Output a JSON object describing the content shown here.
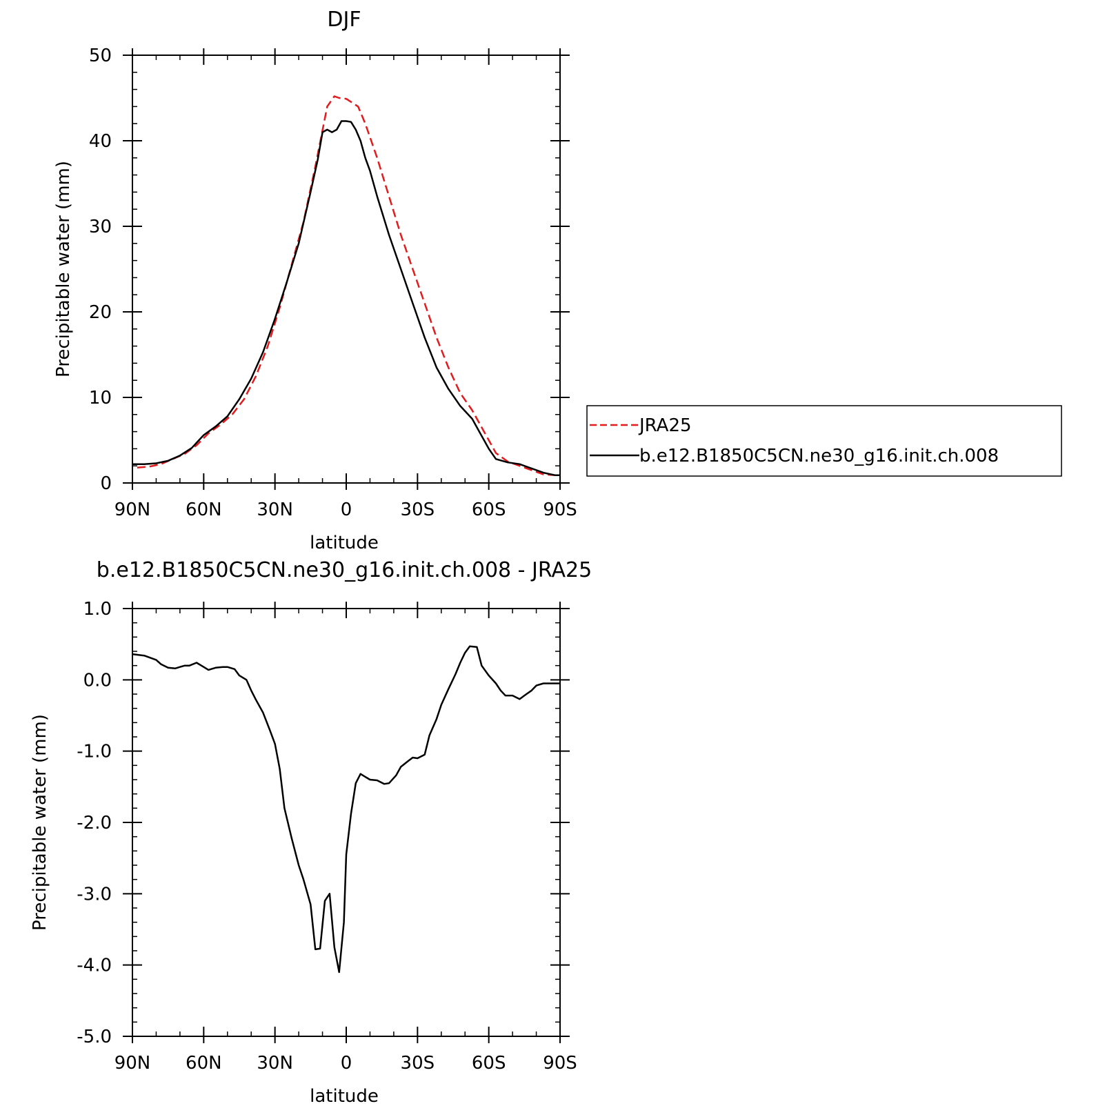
{
  "colors": {
    "jra25": "#e41a1c",
    "model": "#000000"
  },
  "chart_data": [
    {
      "type": "line",
      "title": "DJF",
      "xlabel": "latitude",
      "ylabel": "Precipitable water (mm)",
      "xlim": [
        90,
        -90
      ],
      "ylim": [
        0,
        50
      ],
      "x_ticks": [
        {
          "value": 90,
          "label": "90N"
        },
        {
          "value": 60,
          "label": "60N"
        },
        {
          "value": 30,
          "label": "30N"
        },
        {
          "value": 0,
          "label": "0"
        },
        {
          "value": -30,
          "label": "30S"
        },
        {
          "value": -60,
          "label": "60S"
        },
        {
          "value": -90,
          "label": "90S"
        }
      ],
      "y_ticks": [
        {
          "value": 0,
          "label": "0"
        },
        {
          "value": 10,
          "label": "10"
        },
        {
          "value": 20,
          "label": "20"
        },
        {
          "value": 30,
          "label": "30"
        },
        {
          "value": 40,
          "label": "40"
        },
        {
          "value": 50,
          "label": "50"
        }
      ],
      "legend_position": "outside-right",
      "series": [
        {
          "name": "JRA25",
          "style": "dashed",
          "color": "#e41a1c",
          "x": [
            88,
            83,
            78,
            73,
            68,
            63,
            58,
            53,
            48,
            43,
            38,
            33,
            28,
            23,
            18,
            13,
            8,
            5,
            3,
            0,
            -5,
            -8,
            -13,
            -18,
            -23,
            -28,
            -33,
            -38,
            -43,
            -48,
            -53,
            -58,
            -63,
            -68,
            -73,
            -78,
            -83,
            -88,
            -90
          ],
          "y": [
            1.8,
            1.9,
            2.2,
            2.8,
            3.4,
            4.4,
            5.8,
            6.8,
            8.0,
            9.8,
            12.5,
            16.0,
            20.5,
            25.5,
            30.5,
            37.0,
            44.0,
            45.2,
            45.0,
            44.9,
            44.0,
            42.0,
            38.0,
            33.5,
            29.0,
            25.0,
            21.0,
            17.0,
            13.5,
            10.5,
            8.5,
            6.0,
            3.5,
            2.5,
            2.0,
            1.5,
            1.0,
            0.9,
            0.9
          ]
        },
        {
          "name": "b.e12.B1850C5CN.ne30_g16.init.ch.008",
          "style": "solid",
          "color": "#000000",
          "x": [
            90,
            85,
            80,
            75,
            70,
            65,
            60,
            55,
            50,
            45,
            40,
            35,
            30,
            25,
            20,
            15,
            12,
            10,
            8,
            6,
            4,
            2,
            0,
            -2,
            -4,
            -6,
            -8,
            -10,
            -13,
            -18,
            -23,
            -28,
            -33,
            -38,
            -43,
            -48,
            -53,
            -56,
            -58,
            -60,
            -63,
            -68,
            -73,
            -78,
            -83,
            -88,
            -90
          ],
          "y": [
            2.2,
            2.2,
            2.3,
            2.6,
            3.2,
            4.1,
            5.6,
            6.6,
            7.8,
            9.8,
            12.2,
            15.3,
            19.2,
            23.5,
            28.0,
            34.0,
            37.8,
            41.0,
            41.3,
            41.0,
            41.3,
            42.3,
            42.3,
            42.2,
            41.3,
            40.0,
            38.0,
            36.5,
            33.5,
            29.0,
            25.0,
            21.0,
            17.0,
            13.5,
            11.0,
            9.0,
            7.5,
            6.0,
            5.0,
            4.0,
            2.8,
            2.4,
            2.2,
            1.7,
            1.2,
            0.9,
            0.9
          ]
        }
      ]
    },
    {
      "type": "line",
      "title": "b.e12.B1850C5CN.ne30_g16.init.ch.008 - JRA25",
      "xlabel": "latitude",
      "ylabel": "Precipitable water (mm)",
      "xlim": [
        90,
        -90
      ],
      "ylim": [
        -5,
        1
      ],
      "x_ticks": [
        {
          "value": 90,
          "label": "90N"
        },
        {
          "value": 60,
          "label": "60N"
        },
        {
          "value": 30,
          "label": "30N"
        },
        {
          "value": 0,
          "label": "0"
        },
        {
          "value": -30,
          "label": "30S"
        },
        {
          "value": -60,
          "label": "60S"
        },
        {
          "value": -90,
          "label": "90S"
        }
      ],
      "y_ticks": [
        {
          "value": 1,
          "label": "1.0"
        },
        {
          "value": 0,
          "label": "0.0"
        },
        {
          "value": -1,
          "label": "-1.0"
        },
        {
          "value": -2,
          "label": "-2.0"
        },
        {
          "value": -3,
          "label": "-3.0"
        },
        {
          "value": -4,
          "label": "-4.0"
        },
        {
          "value": -5,
          "label": "-5.0"
        }
      ],
      "series": [
        {
          "name": "",
          "style": "solid",
          "color": "#000000",
          "x": [
            90,
            85,
            80,
            78,
            75,
            72,
            70,
            68,
            66,
            63,
            60,
            58,
            55,
            52,
            50,
            47,
            45,
            42,
            40,
            38,
            35,
            32,
            30,
            28,
            26,
            23,
            20,
            18,
            15,
            13,
            11,
            9,
            7,
            5,
            3,
            1,
            0,
            -2,
            -4,
            -6,
            -8,
            -10,
            -13,
            -16,
            -18,
            -21,
            -23,
            -26,
            -28,
            -30,
            -33,
            -35,
            -38,
            -40,
            -43,
            -46,
            -48,
            -50,
            -52,
            -55,
            -57,
            -60,
            -63,
            -65,
            -67,
            -70,
            -73,
            -75,
            -78,
            -80,
            -83,
            -85,
            -88,
            -90
          ],
          "y": [
            0.36,
            0.34,
            0.28,
            0.22,
            0.17,
            0.16,
            0.18,
            0.2,
            0.2,
            0.24,
            0.18,
            0.14,
            0.17,
            0.18,
            0.18,
            0.15,
            0.06,
            0.0,
            -0.15,
            -0.28,
            -0.46,
            -0.72,
            -0.9,
            -1.25,
            -1.8,
            -2.22,
            -2.6,
            -2.8,
            -3.15,
            -3.78,
            -3.77,
            -3.1,
            -3.0,
            -3.75,
            -4.1,
            -3.4,
            -2.45,
            -1.88,
            -1.45,
            -1.32,
            -1.36,
            -1.4,
            -1.41,
            -1.46,
            -1.45,
            -1.34,
            -1.22,
            -1.14,
            -1.09,
            -1.1,
            -1.05,
            -0.78,
            -0.55,
            -0.35,
            -0.13,
            0.08,
            0.24,
            0.38,
            0.47,
            0.46,
            0.2,
            0.06,
            -0.05,
            -0.15,
            -0.22,
            -0.22,
            -0.27,
            -0.22,
            -0.15,
            -0.08,
            -0.05,
            -0.05,
            -0.05,
            -0.05
          ]
        }
      ]
    }
  ]
}
